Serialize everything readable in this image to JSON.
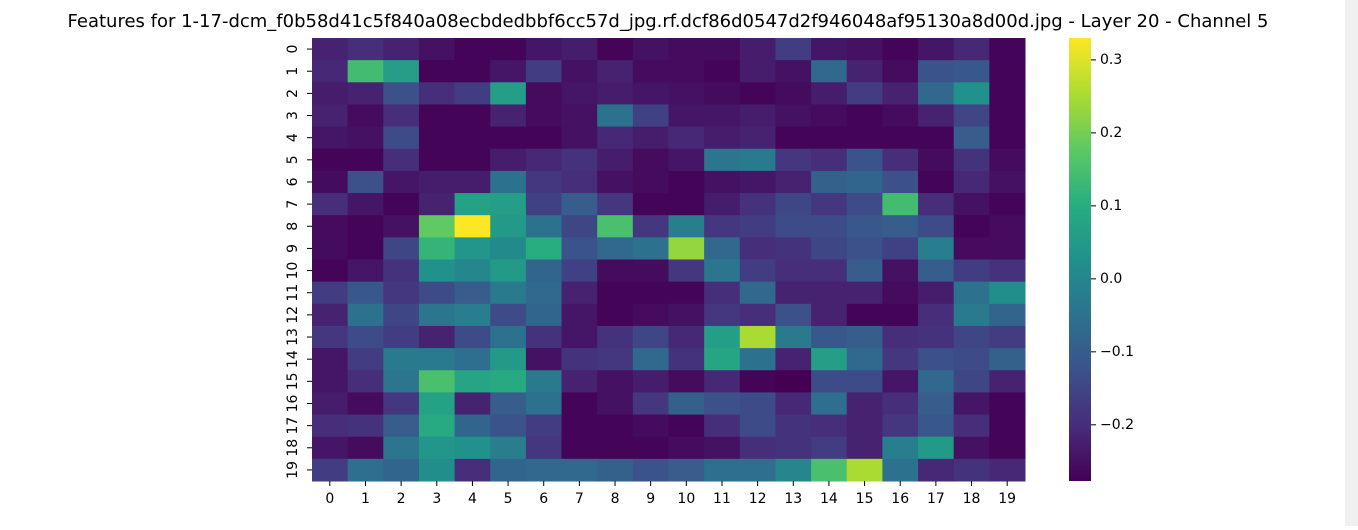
{
  "chart_data": {
    "type": "heatmap",
    "title": "Features for 1-17-dcm_f0b58d41c5f840a08ecbdedbbf6cc57d_jpg.rf.dcf86d0547d2f946048af95130a8d00d.jpg - Layer 20 - Channel 5",
    "categories": [
      "0",
      "1",
      "2",
      "3",
      "4",
      "5",
      "6",
      "7",
      "8",
      "9",
      "10",
      "11",
      "12",
      "13",
      "14",
      "15",
      "16",
      "17",
      "18",
      "19"
    ],
    "y_categories": [
      "0",
      "1",
      "2",
      "3",
      "4",
      "5",
      "6",
      "7",
      "8",
      "9",
      "10",
      "11",
      "12",
      "13",
      "14",
      "15",
      "16",
      "17",
      "18",
      "19"
    ],
    "values": [
      [
        -0.22,
        -0.2,
        -0.22,
        -0.25,
        -0.27,
        -0.27,
        -0.24,
        -0.23,
        -0.27,
        -0.25,
        -0.26,
        -0.26,
        -0.23,
        -0.17,
        -0.24,
        -0.25,
        -0.27,
        -0.24,
        -0.21,
        -0.27
      ],
      [
        -0.21,
        0.14,
        0.06,
        -0.27,
        -0.27,
        -0.24,
        -0.17,
        -0.25,
        -0.22,
        -0.26,
        -0.26,
        -0.27,
        -0.23,
        -0.25,
        -0.07,
        -0.22,
        -0.26,
        -0.12,
        -0.11,
        -0.27
      ],
      [
        -0.23,
        -0.22,
        -0.13,
        -0.2,
        -0.17,
        0.06,
        -0.26,
        -0.24,
        -0.23,
        -0.24,
        -0.25,
        -0.26,
        -0.27,
        -0.26,
        -0.23,
        -0.17,
        -0.22,
        -0.07,
        0.03,
        -0.27
      ],
      [
        -0.22,
        -0.26,
        -0.2,
        -0.27,
        -0.27,
        -0.22,
        -0.26,
        -0.25,
        -0.05,
        -0.16,
        -0.24,
        -0.24,
        -0.23,
        -0.25,
        -0.26,
        -0.27,
        -0.26,
        -0.22,
        -0.15,
        -0.27
      ],
      [
        -0.24,
        -0.25,
        -0.14,
        -0.27,
        -0.27,
        -0.27,
        -0.27,
        -0.25,
        -0.21,
        -0.23,
        -0.21,
        -0.23,
        -0.22,
        -0.27,
        -0.27,
        -0.27,
        -0.27,
        -0.27,
        -0.1,
        -0.27
      ],
      [
        -0.27,
        -0.27,
        -0.2,
        -0.27,
        -0.27,
        -0.23,
        -0.21,
        -0.19,
        -0.23,
        -0.26,
        -0.24,
        -0.04,
        -0.03,
        -0.18,
        -0.2,
        -0.12,
        -0.2,
        -0.26,
        -0.19,
        -0.26
      ],
      [
        -0.26,
        -0.13,
        -0.24,
        -0.23,
        -0.23,
        -0.05,
        -0.18,
        -0.2,
        -0.25,
        -0.26,
        -0.27,
        -0.25,
        -0.24,
        -0.22,
        -0.09,
        -0.08,
        -0.13,
        -0.27,
        -0.21,
        -0.25
      ],
      [
        -0.2,
        -0.24,
        -0.27,
        -0.22,
        0.07,
        0.06,
        -0.16,
        -0.1,
        -0.18,
        -0.27,
        -0.27,
        -0.23,
        -0.19,
        -0.15,
        -0.18,
        -0.14,
        0.14,
        -0.2,
        -0.25,
        -0.27
      ],
      [
        -0.26,
        -0.27,
        -0.25,
        0.18,
        0.33,
        0.05,
        -0.05,
        -0.15,
        0.15,
        -0.18,
        -0.02,
        -0.18,
        -0.17,
        -0.14,
        -0.14,
        -0.11,
        -0.1,
        -0.14,
        -0.27,
        -0.26
      ],
      [
        -0.26,
        -0.27,
        -0.15,
        0.12,
        0.04,
        0.01,
        0.1,
        -0.12,
        -0.07,
        -0.05,
        0.23,
        -0.07,
        -0.2,
        -0.19,
        -0.15,
        -0.13,
        -0.16,
        -0.02,
        -0.26,
        -0.26
      ],
      [
        -0.27,
        -0.24,
        -0.19,
        0.03,
        0.0,
        0.05,
        -0.08,
        -0.16,
        -0.26,
        -0.26,
        -0.18,
        -0.04,
        -0.17,
        -0.2,
        -0.2,
        -0.1,
        -0.25,
        -0.1,
        -0.17,
        -0.19
      ],
      [
        -0.17,
        -0.11,
        -0.18,
        -0.14,
        -0.1,
        -0.03,
        -0.07,
        -0.22,
        -0.27,
        -0.27,
        -0.27,
        -0.2,
        -0.07,
        -0.22,
        -0.22,
        -0.22,
        -0.26,
        -0.23,
        -0.05,
        0.02
      ],
      [
        -0.22,
        -0.05,
        -0.15,
        -0.04,
        -0.02,
        -0.14,
        -0.08,
        -0.24,
        -0.27,
        -0.26,
        -0.25,
        -0.18,
        -0.2,
        -0.13,
        -0.22,
        -0.27,
        -0.27,
        -0.2,
        -0.03,
        -0.08
      ],
      [
        -0.18,
        -0.14,
        -0.17,
        -0.22,
        -0.14,
        -0.05,
        -0.19,
        -0.24,
        -0.19,
        -0.15,
        -0.21,
        0.06,
        0.25,
        -0.03,
        -0.11,
        -0.1,
        -0.2,
        -0.19,
        -0.15,
        -0.17
      ],
      [
        -0.24,
        -0.17,
        -0.03,
        -0.03,
        -0.06,
        0.05,
        -0.25,
        -0.19,
        -0.18,
        -0.07,
        -0.19,
        0.08,
        -0.05,
        -0.22,
        0.06,
        -0.07,
        -0.18,
        -0.13,
        -0.14,
        -0.09
      ],
      [
        -0.24,
        -0.2,
        -0.04,
        0.15,
        0.08,
        0.09,
        -0.03,
        -0.22,
        -0.25,
        -0.23,
        -0.26,
        -0.21,
        -0.27,
        -0.28,
        -0.14,
        -0.14,
        -0.24,
        -0.07,
        -0.15,
        -0.22
      ],
      [
        -0.23,
        -0.26,
        -0.18,
        0.07,
        -0.22,
        -0.1,
        -0.05,
        -0.27,
        -0.25,
        -0.18,
        -0.09,
        -0.13,
        -0.14,
        -0.21,
        -0.06,
        -0.22,
        -0.2,
        -0.1,
        -0.24,
        -0.27
      ],
      [
        -0.2,
        -0.19,
        -0.1,
        0.09,
        -0.08,
        -0.12,
        -0.17,
        -0.27,
        -0.27,
        -0.26,
        -0.27,
        -0.2,
        -0.14,
        -0.19,
        -0.2,
        -0.22,
        -0.18,
        -0.11,
        -0.2,
        -0.27
      ],
      [
        -0.24,
        -0.26,
        -0.04,
        0.04,
        0.03,
        -0.02,
        -0.18,
        -0.27,
        -0.27,
        -0.27,
        -0.26,
        -0.25,
        -0.2,
        -0.19,
        -0.17,
        -0.22,
        -0.02,
        0.05,
        -0.25,
        -0.27
      ],
      [
        -0.17,
        -0.06,
        -0.08,
        0.02,
        -0.2,
        -0.08,
        -0.07,
        -0.07,
        -0.09,
        -0.12,
        -0.1,
        -0.06,
        -0.06,
        0.0,
        0.15,
        0.25,
        -0.05,
        -0.21,
        -0.19,
        -0.21
      ]
    ],
    "colorscale": [
      "#440154",
      "#472d7b",
      "#3b528b",
      "#2c728e",
      "#21918c",
      "#28ae80",
      "#5ec962",
      "#addc30",
      "#fde725"
    ],
    "vlim": [
      -0.277,
      0.33
    ],
    "colorbar_ticks": [
      {
        "value": -0.2,
        "label": "−0.2"
      },
      {
        "value": -0.1,
        "label": "−0.1"
      },
      {
        "value": 0.0,
        "label": "0.0"
      },
      0.1,
      0.2,
      0.3
    ]
  }
}
